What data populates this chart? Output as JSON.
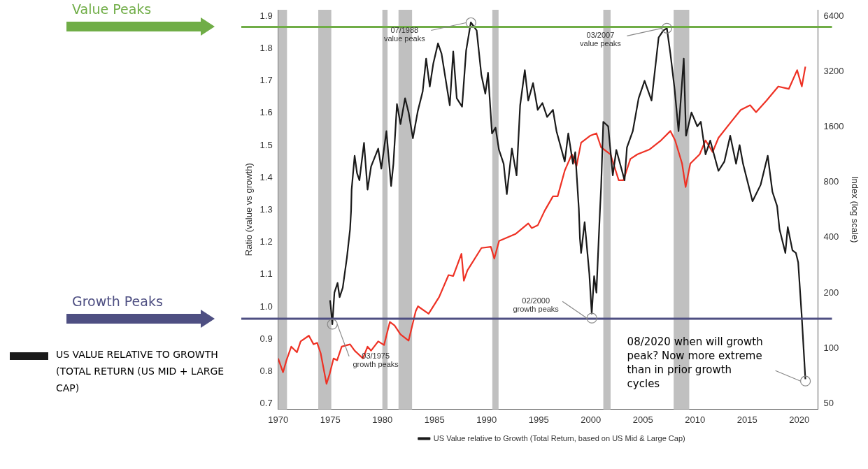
{
  "chart_data": {
    "type": "line",
    "ylabel": "Ratio (value vs growth)",
    "y2label": "Index (log scale)",
    "xlim": [
      1970,
      2021.8
    ],
    "xticks": [
      1970,
      1975,
      1980,
      1985,
      1990,
      1995,
      2000,
      2005,
      2010,
      2015,
      2020
    ],
    "ylim": [
      0.683,
      1.92
    ],
    "yticks": [
      0.7,
      0.8,
      0.9,
      {
        "value": 1,
        "label": "1.0"
      },
      1.1,
      1.2,
      1.3,
      1.4,
      1.5,
      1.6,
      1.7,
      1.8,
      1.9
    ],
    "y2lim": [
      46.6,
      6930
    ],
    "y2ticks": [
      50,
      100,
      200,
      400,
      800,
      1600,
      3200,
      6400
    ],
    "log": "y2",
    "grid": false,
    "legend": "bottom",
    "marker": "none",
    "line_style": "solid",
    "series": [
      {
        "name": "US Value relative to Growth (Total Return, based on US Mid & Large Cap)",
        "color": "#1a1a1a",
        "axis": "y",
        "x": [
          1974.98,
          1975.05,
          1975.2,
          1975.4,
          1975.7,
          1975.9,
          1976.2,
          1976.6,
          1976.9,
          1977.0,
          1977.05,
          1977.34,
          1977.57,
          1977.8,
          1978.24,
          1978.58,
          1978.92,
          1979.6,
          1979.9,
          1980.39,
          1980.84,
          1981.06,
          1981.4,
          1981.74,
          1982.18,
          1982.52,
          1982.93,
          1983.4,
          1983.87,
          1984.2,
          1984.55,
          1984.89,
          1985.34,
          1985.68,
          1986.47,
          1986.8,
          1987.14,
          1987.65,
          1988.04,
          1988.49,
          1989.05,
          1989.5,
          1989.88,
          1990.14,
          1990.52,
          1990.86,
          1991.19,
          1991.64,
          1991.94,
          1992.43,
          1992.88,
          1993.22,
          1993.67,
          1994.0,
          1994.46,
          1994.91,
          1995.36,
          1995.81,
          1996.37,
          1996.71,
          1997.5,
          1997.84,
          1998.29,
          1998.51,
          1998.85,
          1998.96,
          1999.07,
          1999.41,
          1999.86,
          2000.09,
          2000.32,
          2000.54,
          2000.88,
          2000.99,
          2001.2,
          2001.67,
          2002.11,
          2002.45,
          2003.24,
          2003.47,
          2004.03,
          2004.59,
          2005.16,
          2005.83,
          2006.51,
          2006.96,
          2007.3,
          2007.64,
          2008.04,
          2008.42,
          2008.92,
          2009.14,
          2009.66,
          2010.22,
          2010.56,
          2011.01,
          2011.46,
          2012.25,
          2012.82,
          2013.38,
          2013.94,
          2014.28,
          2014.61,
          2015.52,
          2016.3,
          2016.98,
          2017.43,
          2017.88,
          2018.11,
          2018.45,
          2018.67,
          2018.9,
          2019.35,
          2019.68,
          2019.9,
          2020.24,
          2020.59
        ],
        "values": [
          1.02,
          1.0,
          0.946,
          1.044,
          1.074,
          1.03,
          1.059,
          1.153,
          1.24,
          1.298,
          1.363,
          1.468,
          1.414,
          1.392,
          1.508,
          1.363,
          1.435,
          1.49,
          1.428,
          1.544,
          1.374,
          1.443,
          1.628,
          1.566,
          1.646,
          1.602,
          1.522,
          1.606,
          1.667,
          1.769,
          1.682,
          1.754,
          1.816,
          1.784,
          1.624,
          1.791,
          1.646,
          1.62,
          1.794,
          1.881,
          1.856,
          1.718,
          1.66,
          1.725,
          1.537,
          1.555,
          1.486,
          1.443,
          1.349,
          1.49,
          1.407,
          1.624,
          1.733,
          1.639,
          1.693,
          1.61,
          1.631,
          1.588,
          1.61,
          1.544,
          1.45,
          1.537,
          1.443,
          1.479,
          1.305,
          1.211,
          1.167,
          1.262,
          1.102,
          0.979,
          1.095,
          1.044,
          1.298,
          1.37,
          1.573,
          1.559,
          1.407,
          1.486,
          1.392,
          1.494,
          1.544,
          1.646,
          1.7,
          1.639,
          1.834,
          1.856,
          1.863,
          1.784,
          1.675,
          1.544,
          1.769,
          1.53,
          1.602,
          1.559,
          1.573,
          1.472,
          1.515,
          1.421,
          1.45,
          1.53,
          1.443,
          1.501,
          1.443,
          1.327,
          1.378,
          1.468,
          1.356,
          1.312,
          1.24,
          1.196,
          1.167,
          1.247,
          1.175,
          1.167,
          1.138,
          0.972,
          0.776
        ]
      },
      {
        "color": "#ee3124",
        "axis": "y2",
        "x": [
          1970.0,
          1970.47,
          1970.8,
          1971.26,
          1971.8,
          1972.16,
          1972.95,
          1973.4,
          1973.74,
          1974.08,
          1974.64,
          1974.93,
          1975.32,
          1975.66,
          1976.1,
          1976.9,
          1977.34,
          1978.13,
          1978.58,
          1978.92,
          1979.6,
          1980.16,
          1980.72,
          1981.17,
          1981.74,
          1982.52,
          1983.2,
          1983.42,
          1984.44,
          1985.45,
          1986.35,
          1986.8,
          1987.59,
          1987.82,
          1988.16,
          1989.51,
          1990.41,
          1990.74,
          1991.2,
          1992.77,
          1994.0,
          1994.34,
          1994.91,
          1995.58,
          1996.37,
          1996.82,
          1997.5,
          1998.18,
          1998.63,
          1999.07,
          1999.97,
          2000.54,
          2000.99,
          2001.89,
          2002.68,
          2003.13,
          2003.8,
          2004.48,
          2005.61,
          2006.74,
          2007.64,
          2008.09,
          2008.76,
          2009.1,
          2009.55,
          2010.45,
          2011.01,
          2011.69,
          2012.25,
          2013.49,
          2014.39,
          2015.29,
          2015.86,
          2016.87,
          2017.99,
          2019.0,
          2019.8,
          2020.25,
          2020.59
        ],
        "values": [
          88,
          74,
          86,
          102,
          95,
          109,
          117,
          105,
          107,
          94,
          64,
          72,
          88,
          86,
          102,
          105,
          97,
          88,
          102,
          97,
          109,
          104,
          139,
          133,
          119,
          110,
          159,
          169,
          154,
          190,
          250,
          247,
          326,
          233,
          265,
          351,
          356,
          307,
          383,
          418,
          477,
          450,
          466,
          560,
          670,
          670,
          924,
          1134,
          979,
          1312,
          1434,
          1475,
          1238,
          1134,
          820,
          820,
          1070,
          1134,
          1203,
          1351,
          1519,
          1351,
          1010,
          753,
          1010,
          1134,
          1351,
          1167,
          1393,
          1710,
          1978,
          2097,
          1922,
          2226,
          2652,
          2573,
          3254,
          2652,
          3400
        ]
      }
    ],
    "bands": [
      {
        "axis": "x",
        "from": 1970,
        "to": 1970.85,
        "color": "#c0c0c0"
      },
      {
        "axis": "x",
        "from": 1973.85,
        "to": 1975.1,
        "color": "#c0c0c0"
      },
      {
        "axis": "x",
        "from": 1980.0,
        "to": 1980.5,
        "color": "#c0c0c0"
      },
      {
        "axis": "x",
        "from": 1981.55,
        "to": 1982.85,
        "color": "#c0c0c0"
      },
      {
        "axis": "x",
        "from": 1990.55,
        "to": 1991.15,
        "color": "#c0c0c0"
      },
      {
        "axis": "x",
        "from": 2001.2,
        "to": 2001.9,
        "color": "#c0c0c0"
      },
      {
        "axis": "x",
        "from": 2007.95,
        "to": 2009.45,
        "color": "#c0c0c0"
      }
    ],
    "ref_lines": [
      {
        "axis": "y",
        "value": 1.867,
        "label": "Value Peaks",
        "color": "#70ad47"
      },
      {
        "axis": "y",
        "value": 0.963,
        "label": "Growth Peaks",
        "color": "#4e4f82"
      }
    ],
    "annotations": [
      {
        "text": "07/1988\nvalue peaks",
        "x": 1988.5,
        "y": 1.88
      },
      {
        "text": "03/2007\nvalue peaks",
        "x": 2007.3,
        "y": 1.863
      },
      {
        "text": "03/1975\ngrowth peaks",
        "x": 1975.2,
        "y": 0.946
      },
      {
        "text": "02/2000\ngrowth peaks",
        "x": 2000.1,
        "y": 0.965
      },
      {
        "text": "08/2020 when will growth peak? Now more extreme than in prior growth cycles",
        "x": 2020.6,
        "y": 0.77
      },
      "US VALUE RELATIVE TO GROWTH (TOTAL RETURN (US MID + LARGE CAP)"
    ]
  }
}
